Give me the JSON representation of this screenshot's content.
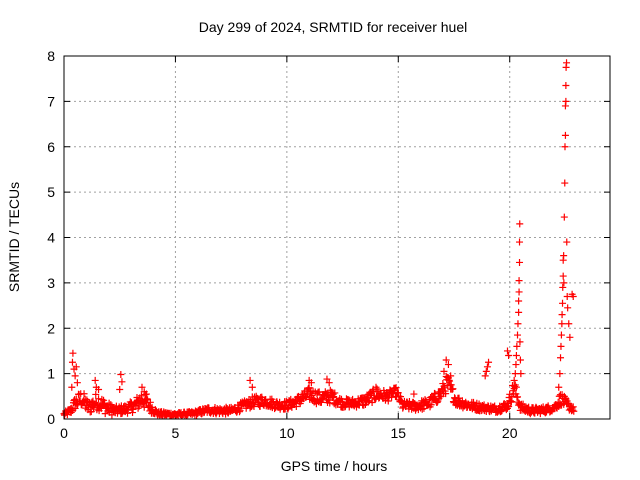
{
  "chart_data": {
    "type": "scatter",
    "title": "Day 299 of 2024, SRMTID for receiver huel",
    "xlabel": "GPS time / hours",
    "ylabel": "SRMTID / TECUs",
    "xlim": [
      0,
      24.5
    ],
    "ylim": [
      0,
      8
    ],
    "xticks": [
      0,
      5,
      10,
      15,
      20
    ],
    "yticks": [
      0,
      1,
      2,
      3,
      4,
      5,
      6,
      7,
      8
    ],
    "grid": true,
    "marker": "plus",
    "marker_color": "#ff0000",
    "series": [
      {
        "name": "SRMTID",
        "envelope": [
          [
            0.0,
            0.1,
            0.05
          ],
          [
            0.3,
            0.18,
            0.08
          ],
          [
            0.5,
            0.35,
            0.15
          ],
          [
            0.8,
            0.45,
            0.2
          ],
          [
            1.1,
            0.25,
            0.15
          ],
          [
            1.5,
            0.4,
            0.2
          ],
          [
            1.9,
            0.25,
            0.15
          ],
          [
            2.3,
            0.18,
            0.1
          ],
          [
            2.8,
            0.22,
            0.1
          ],
          [
            3.2,
            0.3,
            0.15
          ],
          [
            3.5,
            0.45,
            0.2
          ],
          [
            3.8,
            0.3,
            0.15
          ],
          [
            4.2,
            0.12,
            0.05
          ],
          [
            5.0,
            0.1,
            0.04
          ],
          [
            5.8,
            0.12,
            0.05
          ],
          [
            6.5,
            0.2,
            0.08
          ],
          [
            7.0,
            0.18,
            0.08
          ],
          [
            7.5,
            0.18,
            0.08
          ],
          [
            8.0,
            0.28,
            0.1
          ],
          [
            8.5,
            0.38,
            0.12
          ],
          [
            9.0,
            0.4,
            0.12
          ],
          [
            9.5,
            0.32,
            0.1
          ],
          [
            10.0,
            0.3,
            0.1
          ],
          [
            10.5,
            0.4,
            0.12
          ],
          [
            11.0,
            0.55,
            0.15
          ],
          [
            11.5,
            0.45,
            0.15
          ],
          [
            12.0,
            0.5,
            0.15
          ],
          [
            12.5,
            0.35,
            0.1
          ],
          [
            13.0,
            0.35,
            0.1
          ],
          [
            13.5,
            0.4,
            0.12
          ],
          [
            14.0,
            0.55,
            0.15
          ],
          [
            14.5,
            0.5,
            0.12
          ],
          [
            14.9,
            0.6,
            0.1
          ],
          [
            15.2,
            0.3,
            0.1
          ],
          [
            15.8,
            0.28,
            0.1
          ],
          [
            16.4,
            0.35,
            0.12
          ],
          [
            16.9,
            0.55,
            0.15
          ],
          [
            17.2,
            0.8,
            0.2
          ],
          [
            17.6,
            0.4,
            0.12
          ],
          [
            18.2,
            0.3,
            0.1
          ],
          [
            18.8,
            0.25,
            0.08
          ],
          [
            19.4,
            0.22,
            0.08
          ],
          [
            19.9,
            0.3,
            0.1
          ],
          [
            20.2,
            0.7,
            0.2
          ],
          [
            20.5,
            0.25,
            0.1
          ],
          [
            21.0,
            0.18,
            0.08
          ],
          [
            21.5,
            0.2,
            0.08
          ],
          [
            22.0,
            0.25,
            0.08
          ],
          [
            22.3,
            0.45,
            0.15
          ],
          [
            22.6,
            0.3,
            0.1
          ],
          [
            22.9,
            0.2,
            0.05
          ]
        ],
        "points": [
          [
            0.4,
            1.45
          ],
          [
            0.38,
            1.25
          ],
          [
            0.45,
            1.1
          ],
          [
            0.5,
            0.95
          ],
          [
            0.55,
            1.15
          ],
          [
            0.6,
            0.8
          ],
          [
            0.35,
            0.7
          ],
          [
            1.4,
            0.85
          ],
          [
            1.45,
            0.7
          ],
          [
            1.55,
            0.65
          ],
          [
            2.55,
            0.98
          ],
          [
            2.6,
            0.82
          ],
          [
            2.5,
            0.65
          ],
          [
            3.5,
            0.7
          ],
          [
            3.6,
            0.6
          ],
          [
            3.7,
            0.55
          ],
          [
            8.35,
            0.85
          ],
          [
            8.45,
            0.7
          ],
          [
            11.0,
            0.85
          ],
          [
            11.1,
            0.8
          ],
          [
            11.8,
            0.88
          ],
          [
            11.9,
            0.8
          ],
          [
            14.0,
            0.7
          ],
          [
            15.7,
            0.55
          ],
          [
            17.05,
            1.05
          ],
          [
            17.15,
            1.3
          ],
          [
            17.25,
            1.2
          ],
          [
            17.35,
            0.95
          ],
          [
            18.9,
            0.95
          ],
          [
            18.95,
            1.05
          ],
          [
            19.0,
            1.15
          ],
          [
            19.05,
            1.25
          ],
          [
            19.9,
            1.5
          ],
          [
            19.95,
            1.4
          ],
          [
            20.2,
            0.85
          ],
          [
            20.25,
            1.0
          ],
          [
            20.28,
            1.2
          ],
          [
            20.3,
            1.4
          ],
          [
            20.32,
            1.6
          ],
          [
            20.35,
            1.85
          ],
          [
            20.37,
            2.1
          ],
          [
            20.4,
            2.35
          ],
          [
            20.4,
            2.6
          ],
          [
            20.42,
            2.8
          ],
          [
            20.42,
            3.05
          ],
          [
            20.44,
            3.45
          ],
          [
            20.44,
            3.9
          ],
          [
            20.45,
            4.3
          ],
          [
            20.46,
            1.7
          ],
          [
            20.48,
            1.3
          ],
          [
            20.5,
            1.0
          ],
          [
            22.2,
            0.7
          ],
          [
            22.25,
            1.0
          ],
          [
            22.28,
            1.35
          ],
          [
            22.3,
            1.6
          ],
          [
            22.32,
            1.85
          ],
          [
            22.34,
            2.1
          ],
          [
            22.35,
            2.3
          ],
          [
            22.37,
            2.55
          ],
          [
            22.38,
            2.9
          ],
          [
            22.4,
            3.15
          ],
          [
            22.4,
            3.5
          ],
          [
            22.42,
            3.6
          ],
          [
            22.43,
            3.0
          ],
          [
            22.45,
            4.45
          ],
          [
            22.47,
            5.2
          ],
          [
            22.48,
            6.0
          ],
          [
            22.5,
            6.25
          ],
          [
            22.5,
            6.9
          ],
          [
            22.52,
            7.0
          ],
          [
            22.52,
            7.35
          ],
          [
            22.53,
            7.75
          ],
          [
            22.55,
            7.85
          ],
          [
            22.56,
            3.9
          ],
          [
            22.58,
            2.7
          ],
          [
            22.6,
            2.45
          ],
          [
            22.65,
            2.1
          ],
          [
            22.7,
            1.8
          ],
          [
            22.8,
            2.75
          ],
          [
            22.85,
            2.7
          ]
        ]
      }
    ]
  }
}
